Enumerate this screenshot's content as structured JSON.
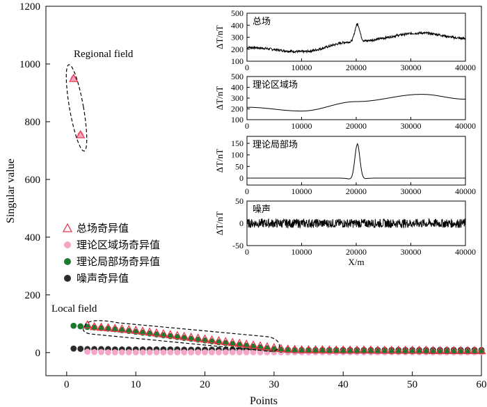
{
  "chart_data": {
    "main": {
      "type": "scatter",
      "xlabel": "Points",
      "ylabel": "Singular value",
      "xlim": [
        -3,
        60
      ],
      "ylim": [
        -80,
        1200
      ],
      "xticks": [
        0,
        10,
        20,
        30,
        40,
        50,
        60
      ],
      "yticks": [
        0,
        200,
        400,
        600,
        800,
        1000,
        1200
      ],
      "annotations": {
        "regional": "Regional field",
        "local": "Local field"
      },
      "series": [
        {
          "name": "总场奇异值",
          "marker": "triangle",
          "color": "#e8374a",
          "x_start": 1,
          "values": [
            950,
            755,
            96,
            90,
            88,
            86,
            84,
            82,
            80,
            77,
            74,
            71,
            68,
            65,
            62,
            59,
            56,
            53,
            50,
            47,
            44,
            41,
            38,
            35,
            32,
            29,
            26,
            23,
            20,
            17,
            14,
            12,
            11,
            10,
            10,
            10,
            10,
            9,
            9,
            9,
            9,
            9,
            9,
            9,
            8,
            8,
            8,
            8,
            8,
            8,
            8,
            8,
            7,
            7,
            7,
            7,
            7,
            7,
            7,
            7
          ]
        },
        {
          "name": "理论区域场奇异值",
          "marker": "circle",
          "color": "#f4a6c8",
          "x_start": 1,
          "values": [
            950,
            755,
            3,
            2,
            2,
            1,
            1,
            1,
            1,
            1,
            1,
            1,
            1,
            1,
            1,
            1,
            1,
            1,
            1,
            1,
            1,
            1,
            1,
            1,
            1,
            1,
            1,
            1,
            1,
            1,
            1,
            1,
            1,
            1,
            1,
            1,
            1,
            1,
            1,
            1,
            1,
            1,
            1,
            1,
            1,
            1,
            1,
            1,
            1,
            1,
            1,
            1,
            1,
            1,
            1,
            1,
            1,
            1,
            1,
            1
          ]
        },
        {
          "name": "理论局部场奇异值",
          "marker": "circle",
          "color": "#1b7a2e",
          "x_start": 1,
          "values": [
            93,
            91,
            89,
            87,
            85,
            83,
            81,
            78,
            75,
            72,
            69,
            66,
            63,
            60,
            57,
            54,
            51,
            48,
            45,
            42,
            39,
            36,
            33,
            30,
            27,
            24,
            21,
            18,
            15,
            12,
            10,
            9,
            8,
            8,
            8,
            7,
            7,
            7,
            7,
            6,
            6,
            6,
            6,
            6,
            6,
            6,
            5,
            5,
            5,
            5,
            5,
            5,
            5,
            5,
            5,
            5,
            5,
            5,
            5,
            5
          ]
        },
        {
          "name": "噪声奇异值",
          "marker": "circle",
          "color": "#2b2b2b",
          "x_start": 1,
          "values": [
            14,
            13,
            12,
            12,
            12,
            12,
            11,
            11,
            11,
            11,
            11,
            11,
            11,
            11,
            11,
            11,
            10,
            10,
            10,
            10,
            10,
            10,
            10,
            10,
            10,
            10,
            10,
            10,
            10,
            10,
            10,
            10,
            9,
            9,
            9,
            9,
            9,
            9,
            9,
            9,
            9,
            9,
            9,
            9,
            9,
            9,
            9,
            9,
            9,
            9,
            9,
            9,
            9,
            9,
            9,
            9,
            9,
            9,
            9,
            9
          ]
        }
      ]
    },
    "insets": [
      {
        "type": "line",
        "title": "总场",
        "ylabel": "ΔT/nT",
        "xlabel": "",
        "xlim": [
          0,
          40000
        ],
        "ylim": [
          100,
          500
        ],
        "yticks": [
          100,
          200,
          300,
          400,
          500
        ],
        "xticks": [
          0,
          10000,
          20000,
          30000,
          40000
        ],
        "signal": {
          "regional_base": 215,
          "regional_dip_at": 10000,
          "regional_dip": 180,
          "regional_peak_at": 32000,
          "regional_peak": 335,
          "end_value": 290,
          "local_peak_at": 20200,
          "local_peak": 150,
          "noise_amplitude": 10
        }
      },
      {
        "type": "line",
        "title": "理论区域场",
        "ylabel": "ΔT/nT",
        "xlabel": "",
        "xlim": [
          0,
          40000
        ],
        "ylim": [
          100,
          500
        ],
        "yticks": [
          100,
          200,
          300,
          400,
          500
        ],
        "xticks": [
          0,
          10000,
          20000,
          30000,
          40000
        ],
        "signal": {
          "regional_base": 215,
          "regional_dip_at": 10000,
          "regional_dip": 180,
          "regional_peak_at": 32000,
          "regional_peak": 335,
          "end_value": 290,
          "local_peak_at": 20200,
          "local_peak": 0,
          "noise_amplitude": 0
        }
      },
      {
        "type": "line",
        "title": "理论局部场",
        "ylabel": "ΔT/nT",
        "xlabel": "",
        "xlim": [
          0,
          40000
        ],
        "ylim": [
          -30,
          180
        ],
        "yticks": [
          0,
          50,
          100,
          150
        ],
        "xticks": [
          0,
          10000,
          20000,
          30000,
          40000
        ],
        "signal": {
          "regional_base": 0,
          "regional_dip_at": 10000,
          "regional_dip": 0,
          "regional_peak_at": 32000,
          "regional_peak": 0,
          "end_value": 0,
          "local_peak_at": 20200,
          "local_peak": 155,
          "noise_amplitude": 0
        }
      },
      {
        "type": "line",
        "title": "噪声",
        "ylabel": "ΔT/nT",
        "xlabel": "X/m",
        "xlim": [
          0,
          40000
        ],
        "ylim": [
          -50,
          50
        ],
        "yticks": [
          -50,
          0,
          50
        ],
        "xticks": [
          0,
          10000,
          20000,
          30000,
          40000
        ],
        "signal": {
          "regional_base": 0,
          "regional_dip_at": 10000,
          "regional_dip": 0,
          "regional_peak_at": 32000,
          "regional_peak": 0,
          "end_value": 0,
          "local_peak_at": 20200,
          "local_peak": 0,
          "noise_amplitude": 10
        }
      }
    ]
  }
}
